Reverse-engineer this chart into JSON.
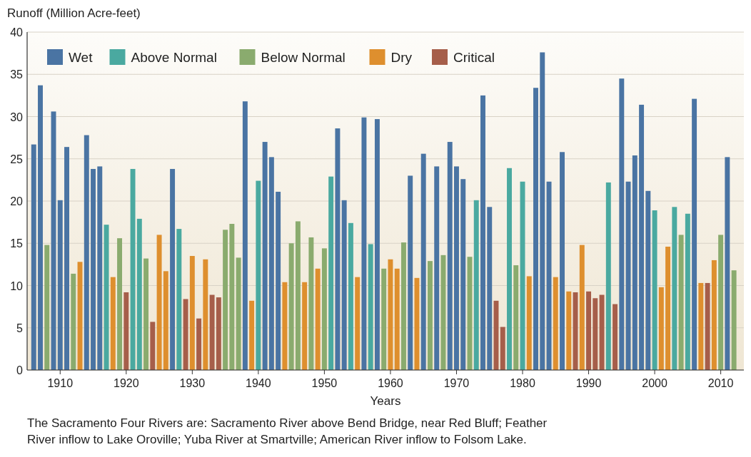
{
  "chart_data": {
    "type": "bar",
    "ylabel": "Runoff (Million Acre-feet)",
    "xlabel": "Years",
    "annotations": [
      "The Sacramento Four Rivers are: Sacramento River above Bend Bridge, near Red Bluff; Feather River inflow to Lake Oroville; Yuba River at Smartville; American River inflow to Folsom Lake."
    ],
    "xlim": [
      1905,
      2013.5
    ],
    "xticks": [
      1910,
      1920,
      1930,
      1940,
      1950,
      1960,
      1970,
      1980,
      1990,
      2000,
      2010
    ],
    "ylim": [
      0,
      40
    ],
    "yticks": [
      0,
      5,
      10,
      15,
      20,
      25,
      30,
      35,
      40
    ],
    "grid": "y",
    "legend": "top left",
    "series": [
      {
        "name": "Wet",
        "color": "#4a74a3",
        "x": [
          1906,
          1907,
          1909,
          1910,
          1911,
          1914,
          1915,
          1916,
          1927,
          1938,
          1941,
          1942,
          1943,
          1952,
          1953,
          1956,
          1958,
          1963,
          1965,
          1967,
          1969,
          1970,
          1971,
          1974,
          1975,
          1982,
          1983,
          1984,
          1986,
          1995,
          1996,
          1997,
          1998,
          1999,
          2006,
          2011
        ],
        "values": [
          26.7,
          33.7,
          30.6,
          20.1,
          26.4,
          27.8,
          23.8,
          24.1,
          23.8,
          31.8,
          27.0,
          25.2,
          21.1,
          28.6,
          20.1,
          29.9,
          29.7,
          23.0,
          25.6,
          24.1,
          27.0,
          24.1,
          22.6,
          32.5,
          19.3,
          33.4,
          37.6,
          22.3,
          25.8,
          34.5,
          22.3,
          25.4,
          31.4,
          21.2,
          32.1,
          25.2
        ]
      },
      {
        "name": "Above Normal",
        "color": "#4aa9a0",
        "x": [
          1917,
          1921,
          1922,
          1928,
          1940,
          1951,
          1954,
          1957,
          1973,
          1978,
          1980,
          1993,
          2000,
          2003,
          2005
        ],
        "values": [
          17.2,
          23.8,
          17.9,
          16.7,
          22.4,
          22.9,
          17.4,
          14.9,
          20.1,
          23.9,
          22.3,
          22.2,
          18.9,
          19.3,
          18.5
        ]
      },
      {
        "name": "Below Normal",
        "color": "#8aab6e",
        "x": [
          1908,
          1912,
          1919,
          1923,
          1935,
          1936,
          1937,
          1945,
          1946,
          1948,
          1950,
          1959,
          1962,
          1966,
          1968,
          1972,
          1979,
          2004,
          2010,
          2012
        ],
        "values": [
          14.8,
          11.4,
          15.6,
          13.2,
          16.6,
          17.3,
          13.3,
          15.0,
          17.6,
          15.7,
          14.4,
          12.0,
          15.1,
          12.9,
          13.6,
          13.4,
          12.4,
          16.0,
          16.0,
          11.8
        ]
      },
      {
        "name": "Dry",
        "color": "#de8f2e",
        "x": [
          1913,
          1918,
          1925,
          1926,
          1930,
          1932,
          1939,
          1944,
          1947,
          1949,
          1955,
          1960,
          1961,
          1964,
          1981,
          1985,
          1987,
          1989,
          2001,
          2002,
          2007,
          2009
        ],
        "values": [
          12.8,
          11.0,
          16.0,
          11.7,
          13.5,
          13.1,
          8.2,
          10.4,
          10.4,
          12.0,
          11.0,
          13.1,
          12.0,
          10.9,
          11.1,
          11.0,
          9.3,
          14.8,
          9.8,
          14.6,
          10.3,
          13.0
        ]
      },
      {
        "name": "Critical",
        "color": "#a65e4a",
        "x": [
          1920,
          1924,
          1929,
          1931,
          1933,
          1934,
          1976,
          1977,
          1988,
          1990,
          1991,
          1992,
          1994,
          2008
        ],
        "values": [
          9.2,
          5.7,
          8.4,
          6.1,
          8.9,
          8.6,
          8.2,
          5.1,
          9.2,
          9.3,
          8.5,
          8.9,
          7.8,
          10.3
        ]
      }
    ]
  }
}
